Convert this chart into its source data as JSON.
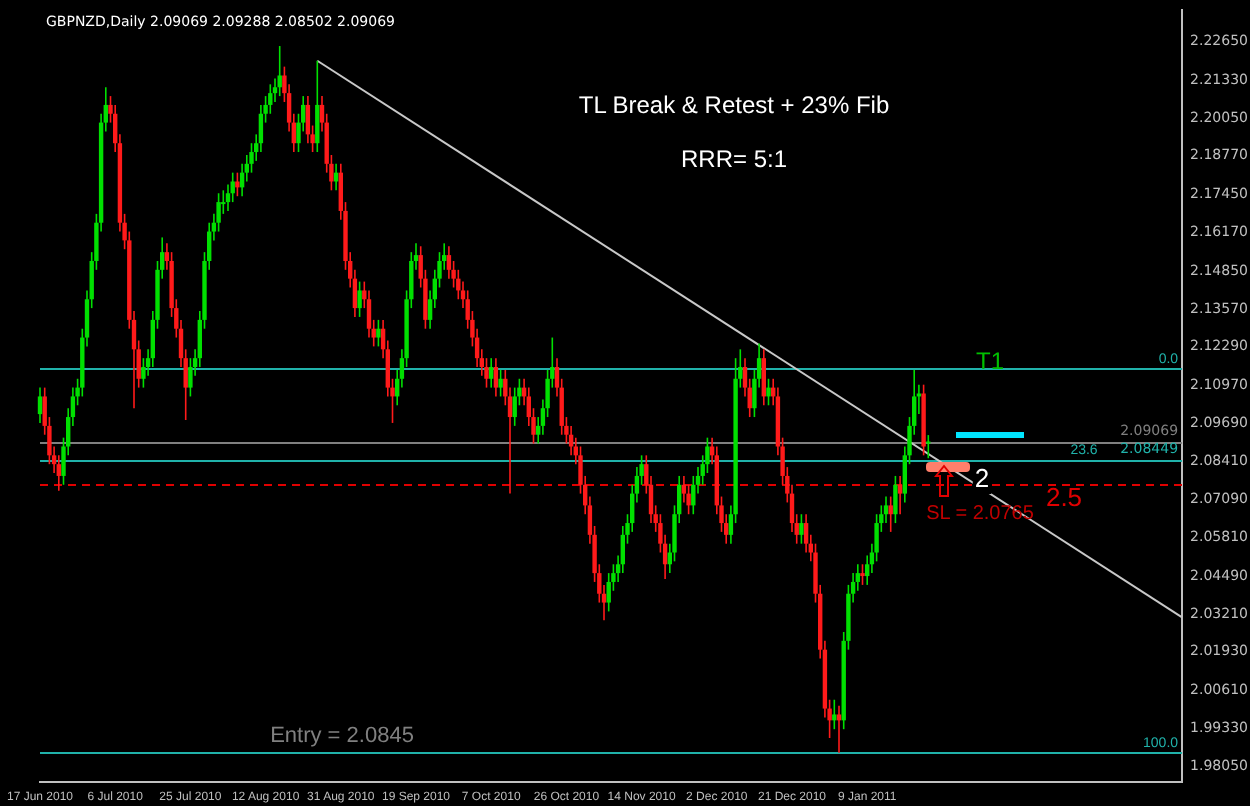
{
  "chart_data": {
    "type": "candlestick",
    "title": "GBPNZD,Daily 2.09069 2.09288 2.08502 2.09069",
    "categories": [
      "17 Jun 2010",
      null,
      null,
      null,
      null,
      null,
      null,
      null,
      null,
      null,
      null,
      null,
      null,
      null,
      null,
      null,
      "6 Jul 2010",
      null,
      null,
      null,
      null,
      null,
      null,
      null,
      null,
      null,
      null,
      null,
      null,
      null,
      null,
      null,
      "25 Jul 2010",
      null,
      null,
      null,
      null,
      null,
      null,
      null,
      null,
      null,
      null,
      null,
      null,
      null,
      null,
      null,
      "12 Aug 2010",
      null,
      null,
      null,
      null,
      null,
      null,
      null,
      null,
      null,
      null,
      null,
      null,
      null,
      null,
      null,
      "31 Aug 2010",
      null,
      null,
      null,
      null,
      null,
      null,
      null,
      null,
      null,
      null,
      null,
      null,
      null,
      null,
      null,
      "19 Sep 2010",
      null,
      null,
      null,
      null,
      null,
      null,
      null,
      null,
      null,
      null,
      null,
      null,
      null,
      null,
      null,
      "7 Oct 2010",
      null,
      null,
      null,
      null,
      null,
      null,
      null,
      null,
      null,
      null,
      null,
      null,
      null,
      null,
      null,
      "26 Oct 2010",
      null,
      null,
      null,
      null,
      null,
      null,
      null,
      null,
      null,
      null,
      null,
      null,
      null,
      null,
      null,
      "14 Nov 2010",
      null,
      null,
      null,
      null,
      null,
      null,
      null,
      null,
      null,
      null,
      null,
      null,
      null,
      null,
      null,
      "2 Dec 2010",
      null,
      null,
      null,
      null,
      null,
      null,
      null,
      null,
      null,
      null,
      null,
      null,
      null,
      null,
      null,
      "21 Dec 2010",
      null,
      null,
      null,
      null,
      null,
      null,
      null,
      null,
      null,
      null,
      null,
      null,
      null,
      null,
      null,
      "9 Jan 2011",
      null,
      null,
      null,
      null,
      null,
      null,
      null,
      null,
      null,
      null,
      null,
      null,
      null,
      null,
      null,
      null,
      null,
      null,
      null,
      null,
      null,
      null,
      null,
      null,
      null,
      null,
      null,
      null,
      null,
      null,
      null,
      null,
      null,
      null,
      null,
      null,
      null,
      null,
      null,
      null,
      null,
      null,
      null,
      null,
      null,
      null,
      null,
      null,
      null,
      null,
      null,
      null,
      null,
      null,
      null,
      null,
      null,
      null,
      null,
      null,
      null,
      null,
      null,
      null,
      null,
      null,
      null
    ],
    "ohlc": [
      [
        2.1,
        2.109,
        2.097,
        2.106
      ],
      [
        2.106,
        2.109,
        2.093,
        2.096
      ],
      [
        2.096,
        2.099,
        2.083,
        2.086
      ],
      [
        2.086,
        2.089,
        2.08,
        2.083
      ],
      [
        2.083,
        2.086,
        2.074,
        2.079
      ],
      [
        2.079,
        2.092,
        2.076,
        2.089
      ],
      [
        2.089,
        2.102,
        2.086,
        2.099
      ],
      [
        2.099,
        2.109,
        2.096,
        2.106
      ],
      [
        2.106,
        2.112,
        2.103,
        2.109
      ],
      [
        2.109,
        2.129,
        2.106,
        2.126
      ],
      [
        2.126,
        2.142,
        2.123,
        2.139
      ],
      [
        2.139,
        2.155,
        2.136,
        2.152
      ],
      [
        2.152,
        2.168,
        2.149,
        2.165
      ],
      [
        2.165,
        2.202,
        2.162,
        2.199
      ],
      [
        2.199,
        2.211,
        2.196,
        2.205
      ],
      [
        2.205,
        2.208,
        2.199,
        2.202
      ],
      [
        2.202,
        2.205,
        2.189,
        2.192
      ],
      [
        2.192,
        2.195,
        2.162,
        2.165
      ],
      [
        2.165,
        2.168,
        2.156,
        2.159
      ],
      [
        2.159,
        2.162,
        2.129,
        2.132
      ],
      [
        2.132,
        2.135,
        2.102,
        2.122
      ],
      [
        2.122,
        2.125,
        2.109,
        2.112
      ],
      [
        2.112,
        2.119,
        2.109,
        2.116
      ],
      [
        2.116,
        2.122,
        2.113,
        2.119
      ],
      [
        2.119,
        2.135,
        2.116,
        2.132
      ],
      [
        2.132,
        2.152,
        2.129,
        2.149
      ],
      [
        2.149,
        2.16,
        2.146,
        2.155
      ],
      [
        2.155,
        2.158,
        2.149,
        2.152
      ],
      [
        2.152,
        2.155,
        2.133,
        2.136
      ],
      [
        2.136,
        2.139,
        2.126,
        2.129
      ],
      [
        2.129,
        2.132,
        2.116,
        2.119
      ],
      [
        2.119,
        2.122,
        2.098,
        2.109
      ],
      [
        2.109,
        2.119,
        2.106,
        2.116
      ],
      [
        2.116,
        2.122,
        2.113,
        2.119
      ],
      [
        2.119,
        2.135,
        2.116,
        2.132
      ],
      [
        2.132,
        2.155,
        2.129,
        2.152
      ],
      [
        2.152,
        2.165,
        2.149,
        2.162
      ],
      [
        2.162,
        2.168,
        2.159,
        2.165
      ],
      [
        2.165,
        2.175,
        2.162,
        2.172
      ],
      [
        2.172,
        2.176,
        2.168,
        2.172
      ],
      [
        2.172,
        2.178,
        2.169,
        2.175
      ],
      [
        2.175,
        2.182,
        2.172,
        2.179
      ],
      [
        2.179,
        2.182,
        2.174,
        2.177
      ],
      [
        2.177,
        2.185,
        2.174,
        2.182
      ],
      [
        2.182,
        2.188,
        2.179,
        2.185
      ],
      [
        2.185,
        2.192,
        2.182,
        2.189
      ],
      [
        2.189,
        2.195,
        2.186,
        2.192
      ],
      [
        2.192,
        2.205,
        2.189,
        2.202
      ],
      [
        2.202,
        2.208,
        2.199,
        2.205
      ],
      [
        2.205,
        2.212,
        2.202,
        2.209
      ],
      [
        2.209,
        2.214,
        2.206,
        2.211
      ],
      [
        2.211,
        2.225,
        2.208,
        2.215
      ],
      [
        2.215,
        2.218,
        2.206,
        2.209
      ],
      [
        2.209,
        2.212,
        2.196,
        2.199
      ],
      [
        2.199,
        2.202,
        2.189,
        2.192
      ],
      [
        2.192,
        2.202,
        2.189,
        2.199
      ],
      [
        2.199,
        2.208,
        2.196,
        2.205
      ],
      [
        2.205,
        2.208,
        2.192,
        2.195
      ],
      [
        2.195,
        2.198,
        2.189,
        2.192
      ],
      [
        2.192,
        2.22,
        2.189,
        2.205
      ],
      [
        2.205,
        2.208,
        2.196,
        2.199
      ],
      [
        2.199,
        2.202,
        2.182,
        2.185
      ],
      [
        2.185,
        2.188,
        2.176,
        2.179
      ],
      [
        2.179,
        2.185,
        2.176,
        2.182
      ],
      [
        2.182,
        2.185,
        2.166,
        2.169
      ],
      [
        2.169,
        2.172,
        2.149,
        2.152
      ],
      [
        2.152,
        2.155,
        2.143,
        2.146
      ],
      [
        2.146,
        2.149,
        2.133,
        2.136
      ],
      [
        2.136,
        2.145,
        2.133,
        2.142
      ],
      [
        2.142,
        2.145,
        2.136,
        2.139
      ],
      [
        2.139,
        2.142,
        2.126,
        2.129
      ],
      [
        2.129,
        2.132,
        2.123,
        2.126
      ],
      [
        2.126,
        2.132,
        2.123,
        2.129
      ],
      [
        2.129,
        2.132,
        2.119,
        2.122
      ],
      [
        2.122,
        2.125,
        2.106,
        2.109
      ],
      [
        2.109,
        2.112,
        2.097,
        2.106
      ],
      [
        2.106,
        2.115,
        2.103,
        2.112
      ],
      [
        2.112,
        2.122,
        2.109,
        2.119
      ],
      [
        2.119,
        2.142,
        2.116,
        2.139
      ],
      [
        2.139,
        2.155,
        2.136,
        2.152
      ],
      [
        2.152,
        2.158,
        2.149,
        2.154
      ],
      [
        2.154,
        2.157,
        2.143,
        2.146
      ],
      [
        2.146,
        2.149,
        2.129,
        2.132
      ],
      [
        2.132,
        2.142,
        2.129,
        2.139
      ],
      [
        2.139,
        2.149,
        2.136,
        2.146
      ],
      [
        2.146,
        2.155,
        2.143,
        2.152
      ],
      [
        2.152,
        2.158,
        2.149,
        2.154
      ],
      [
        2.154,
        2.157,
        2.146,
        2.149
      ],
      [
        2.149,
        2.152,
        2.143,
        2.146
      ],
      [
        2.146,
        2.149,
        2.139,
        2.142
      ],
      [
        2.142,
        2.145,
        2.136,
        2.139
      ],
      [
        2.139,
        2.142,
        2.129,
        2.132
      ],
      [
        2.132,
        2.135,
        2.123,
        2.126
      ],
      [
        2.126,
        2.129,
        2.116,
        2.119
      ],
      [
        2.119,
        2.122,
        2.113,
        2.116
      ],
      [
        2.116,
        2.119,
        2.109,
        2.112
      ],
      [
        2.112,
        2.119,
        2.109,
        2.116
      ],
      [
        2.116,
        2.119,
        2.106,
        2.109
      ],
      [
        2.109,
        2.115,
        2.106,
        2.112
      ],
      [
        2.112,
        2.115,
        2.103,
        2.106
      ],
      [
        2.106,
        2.109,
        2.073,
        2.099
      ],
      [
        2.099,
        2.109,
        2.096,
        2.106
      ],
      [
        2.106,
        2.112,
        2.103,
        2.109
      ],
      [
        2.109,
        2.112,
        2.103,
        2.106
      ],
      [
        2.106,
        2.109,
        2.096,
        2.099
      ],
      [
        2.099,
        2.102,
        2.09,
        2.093
      ],
      [
        2.093,
        2.099,
        2.09,
        2.096
      ],
      [
        2.096,
        2.105,
        2.093,
        2.102
      ],
      [
        2.102,
        2.115,
        2.099,
        2.112
      ],
      [
        2.112,
        2.126,
        2.109,
        2.116
      ],
      [
        2.116,
        2.119,
        2.106,
        2.109
      ],
      [
        2.109,
        2.112,
        2.093,
        2.096
      ],
      [
        2.096,
        2.099,
        2.09,
        2.093
      ],
      [
        2.093,
        2.096,
        2.086,
        2.089
      ],
      [
        2.089,
        2.092,
        2.083,
        2.086
      ],
      [
        2.086,
        2.089,
        2.073,
        2.076
      ],
      [
        2.076,
        2.079,
        2.066,
        2.069
      ],
      [
        2.069,
        2.072,
        2.056,
        2.059
      ],
      [
        2.059,
        2.062,
        2.043,
        2.046
      ],
      [
        2.046,
        2.049,
        2.036,
        2.039
      ],
      [
        2.039,
        2.042,
        2.03,
        2.036
      ],
      [
        2.036,
        2.046,
        2.033,
        2.043
      ],
      [
        2.043,
        2.049,
        2.04,
        2.046
      ],
      [
        2.046,
        2.052,
        2.043,
        2.049
      ],
      [
        2.049,
        2.062,
        2.046,
        2.059
      ],
      [
        2.059,
        2.066,
        2.056,
        2.063
      ],
      [
        2.063,
        2.076,
        2.06,
        2.073
      ],
      [
        2.073,
        2.082,
        2.07,
        2.079
      ],
      [
        2.079,
        2.086,
        2.076,
        2.083
      ],
      [
        2.083,
        2.086,
        2.073,
        2.076
      ],
      [
        2.076,
        2.079,
        2.063,
        2.066
      ],
      [
        2.066,
        2.069,
        2.06,
        2.063
      ],
      [
        2.063,
        2.066,
        2.053,
        2.056
      ],
      [
        2.056,
        2.059,
        2.044,
        2.049
      ],
      [
        2.049,
        2.056,
        2.046,
        2.053
      ],
      [
        2.053,
        2.069,
        2.05,
        2.066
      ],
      [
        2.066,
        2.079,
        2.063,
        2.076
      ],
      [
        2.076,
        2.079,
        2.07,
        2.073
      ],
      [
        2.073,
        2.076,
        2.066,
        2.069
      ],
      [
        2.069,
        2.079,
        2.066,
        2.076
      ],
      [
        2.076,
        2.082,
        2.073,
        2.079
      ],
      [
        2.079,
        2.086,
        2.076,
        2.083
      ],
      [
        2.083,
        2.092,
        2.08,
        2.089
      ],
      [
        2.089,
        2.092,
        2.083,
        2.086
      ],
      [
        2.086,
        2.089,
        2.066,
        2.069
      ],
      [
        2.069,
        2.072,
        2.06,
        2.063
      ],
      [
        2.063,
        2.066,
        2.056,
        2.059
      ],
      [
        2.059,
        2.069,
        2.056,
        2.066
      ],
      [
        2.066,
        2.119,
        2.063,
        2.112
      ],
      [
        2.112,
        2.122,
        2.109,
        2.116
      ],
      [
        2.116,
        2.119,
        2.106,
        2.109
      ],
      [
        2.109,
        2.112,
        2.099,
        2.102
      ],
      [
        2.102,
        2.115,
        2.099,
        2.112
      ],
      [
        2.112,
        2.124,
        2.109,
        2.119
      ],
      [
        2.119,
        2.122,
        2.103,
        2.106
      ],
      [
        2.106,
        2.112,
        2.103,
        2.109
      ],
      [
        2.109,
        2.112,
        2.103,
        2.106
      ],
      [
        2.106,
        2.109,
        2.086,
        2.089
      ],
      [
        2.089,
        2.092,
        2.076,
        2.079
      ],
      [
        2.079,
        2.082,
        2.07,
        2.073
      ],
      [
        2.073,
        2.076,
        2.06,
        2.063
      ],
      [
        2.063,
        2.066,
        2.056,
        2.059
      ],
      [
        2.059,
        2.066,
        2.056,
        2.063
      ],
      [
        2.063,
        2.066,
        2.053,
        2.056
      ],
      [
        2.056,
        2.059,
        2.05,
        2.053
      ],
      [
        2.053,
        2.056,
        2.036,
        2.039
      ],
      [
        2.039,
        2.042,
        2.017,
        2.02
      ],
      [
        2.02,
        2.023,
        1.997,
        2.0
      ],
      [
        2.0,
        2.003,
        1.99,
        1.996
      ],
      [
        1.996,
        2.003,
        1.993,
        1.998
      ],
      [
        1.998,
        2.001,
        1.985,
        1.996
      ],
      [
        1.996,
        2.026,
        1.993,
        2.023
      ],
      [
        2.023,
        2.042,
        2.02,
        2.039
      ],
      [
        2.039,
        2.046,
        2.036,
        2.043
      ],
      [
        2.043,
        2.049,
        2.04,
        2.046
      ],
      [
        2.046,
        2.049,
        2.042,
        2.045
      ],
      [
        2.045,
        2.052,
        2.042,
        2.049
      ],
      [
        2.049,
        2.056,
        2.046,
        2.053
      ],
      [
        2.053,
        2.066,
        2.05,
        2.063
      ],
      [
        2.063,
        2.069,
        2.06,
        2.066
      ],
      [
        2.066,
        2.072,
        2.063,
        2.069
      ],
      [
        2.069,
        2.072,
        2.06,
        2.066
      ],
      [
        2.066,
        2.079,
        2.063,
        2.076
      ],
      [
        2.076,
        2.079,
        2.066,
        2.073
      ],
      [
        2.073,
        2.089,
        2.07,
        2.086
      ],
      [
        2.086,
        2.099,
        2.083,
        2.096
      ],
      [
        2.096,
        2.115,
        2.093,
        2.106
      ],
      [
        2.106,
        2.11,
        2.1,
        2.107
      ],
      [
        2.107,
        2.11,
        2.086,
        2.089
      ],
      [
        2.09069,
        2.09288,
        2.08502,
        2.09069
      ],
      null,
      null,
      null,
      null,
      null,
      null,
      null,
      null,
      null,
      null,
      null,
      null,
      null,
      null,
      null,
      null,
      null,
      null,
      null,
      null,
      null,
      null,
      null,
      null,
      null,
      null,
      null,
      null,
      null,
      null,
      null,
      null,
      null,
      null,
      null,
      null,
      null,
      null,
      null,
      null,
      null,
      null,
      null,
      null,
      null,
      null,
      null,
      null,
      null,
      null,
      null,
      null,
      null,
      null
    ],
    "series": [
      {
        "type": "line",
        "color": "#c8c8c8",
        "values": [
          null,
          null,
          null,
          null,
          null,
          null,
          null,
          null,
          null,
          null,
          null,
          null,
          null,
          null,
          null,
          null,
          null,
          null,
          null,
          null,
          null,
          null,
          null,
          null,
          null,
          null,
          null,
          null,
          null,
          null,
          null,
          null,
          null,
          null,
          null,
          null,
          null,
          null,
          null,
          null,
          null,
          null,
          null,
          null,
          null,
          null,
          null,
          null,
          null,
          null,
          null,
          null,
          null,
          null,
          null,
          null,
          null,
          null,
          null,
          2.22,
          null,
          null,
          null,
          null,
          null,
          null,
          null,
          null,
          null,
          null,
          null,
          null,
          null,
          null,
          null,
          null,
          null,
          null,
          null,
          null,
          null,
          null,
          null,
          null,
          null,
          null,
          null,
          null,
          null,
          null,
          null,
          null,
          null,
          null,
          null,
          null,
          null,
          null,
          null,
          null,
          null,
          null,
          null,
          null,
          null,
          null,
          null,
          null,
          null,
          null,
          null,
          null,
          null,
          null,
          null,
          null,
          null,
          null,
          null,
          null,
          null,
          null,
          null,
          null,
          null,
          null,
          null,
          null,
          null,
          null,
          null,
          null,
          null,
          null,
          null,
          null,
          null,
          null,
          null,
          null,
          null,
          null,
          null,
          null,
          null,
          null,
          null,
          null,
          null,
          null,
          null,
          null,
          null,
          null,
          null,
          null,
          null,
          null,
          null,
          null,
          null,
          null,
          null,
          null,
          null,
          null,
          null,
          null,
          null,
          null,
          null,
          null,
          null,
          null,
          null,
          null,
          null,
          null,
          null,
          null,
          null,
          null,
          null,
          null,
          null,
          null,
          null,
          null,
          null,
          null,
          null,
          null,
          null,
          null,
          null,
          null,
          null,
          null,
          null,
          null,
          null,
          null,
          null,
          null,
          null,
          null,
          null,
          null,
          null,
          null,
          null,
          null,
          null,
          null,
          null,
          null,
          null,
          null,
          null,
          null,
          null,
          null,
          null,
          null,
          null,
          null,
          null,
          null,
          null,
          null,
          null,
          null,
          null,
          null,
          null,
          null,
          null,
          null,
          null,
          null,
          null,
          null,
          null,
          2.031
        ]
      }
    ],
    "ylim": [
      1.9752,
      2.2371
    ],
    "yticks": [
      {
        "value": 2.2265,
        "label": "2.22650"
      },
      {
        "value": 2.2133,
        "label": "2.21330"
      },
      {
        "value": 2.2005,
        "label": "2.20050"
      },
      {
        "value": 2.1877,
        "label": "2.18770"
      },
      {
        "value": 2.1745,
        "label": "2.17450"
      },
      {
        "value": 2.1617,
        "label": "2.16170"
      },
      {
        "value": 2.1485,
        "label": "2.14850"
      },
      {
        "value": 2.1357,
        "label": "2.13570"
      },
      {
        "value": 2.1229,
        "label": "2.12290"
      },
      {
        "value": 2.1097,
        "label": "2.10970"
      },
      {
        "value": 2.0969,
        "label": "2.09690"
      },
      {
        "value": 2.0841,
        "label": "2.08410"
      },
      {
        "value": 2.0709,
        "label": "2.07090"
      },
      {
        "value": 2.0581,
        "label": "2.05810"
      },
      {
        "value": 2.0449,
        "label": "2.04490"
      },
      {
        "value": 2.0321,
        "label": "2.03210"
      },
      {
        "value": 2.0193,
        "label": "2.01930"
      },
      {
        "value": 2.0061,
        "label": "2.00610"
      },
      {
        "value": 1.9933,
        "label": "1.99330"
      },
      {
        "value": 1.9805,
        "label": "1.98050"
      }
    ],
    "ref_lines": [
      {
        "axis": "y",
        "value": 2.09069,
        "label": "2.09069",
        "color": "#808080"
      },
      {
        "axis": "y",
        "value": 2.1154,
        "color": "#20b2aa"
      },
      {
        "axis": "y",
        "value": 2.08449,
        "label": "2.08449",
        "color": "#20b2aa"
      },
      {
        "axis": "y",
        "value": 1.985,
        "color": "#20b2aa"
      },
      {
        "axis": "y",
        "value": 2.0765,
        "color": "#e00000",
        "line_style": "dashed"
      }
    ],
    "annotations": [
      "TL Break & Retest + 23% Fib",
      "RRR= 5:1",
      "T1",
      "2",
      {
        "text": "2.5",
        "y": 2.0765
      },
      {
        "text": "SL = 2.0765",
        "y": 2.0765
      },
      "Entry = 2.0845",
      {
        "text": "0.0",
        "y": 2.1154
      },
      {
        "text": "23.6",
        "y": 2.08449
      },
      {
        "text": "100.0",
        "y": 1.985
      }
    ]
  }
}
